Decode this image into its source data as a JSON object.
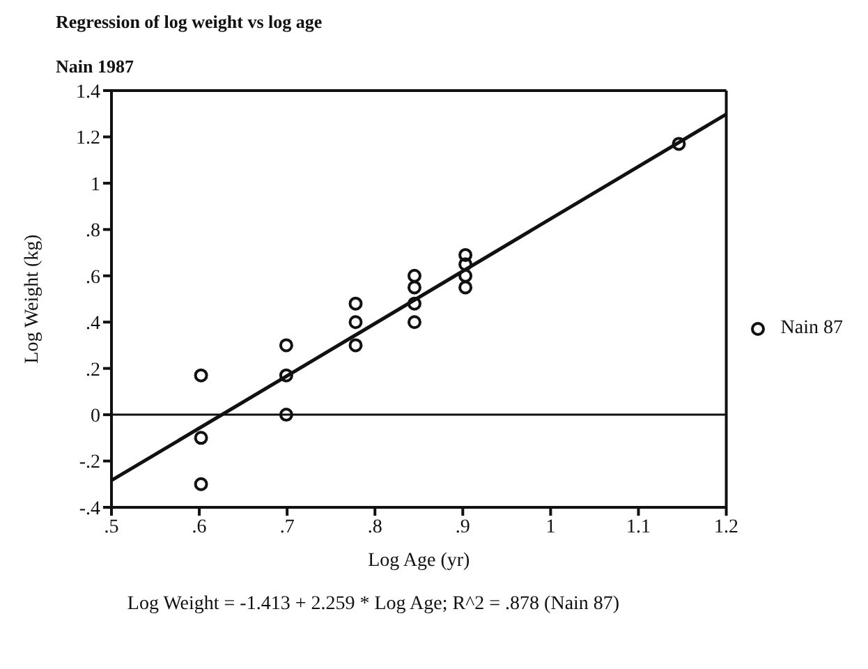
{
  "chart_data": {
    "type": "scatter",
    "title": "Regression of log weight vs log age",
    "subtitle": "Nain 1987",
    "xlabel": "Log Age (yr)",
    "ylabel": "Log Weight (kg)",
    "annotations": [
      "Log Weight = -1.413 + 2.259 * Log Age; R^2 = .878 (Nain 87)"
    ],
    "series": [
      {
        "name": "Nain 87",
        "color": "#111111",
        "marker": "circle",
        "x": [
          0.602,
          0.602,
          0.602,
          0.699,
          0.699,
          0.699,
          0.778,
          0.778,
          0.778,
          0.845,
          0.845,
          0.845,
          0.845,
          0.903,
          0.903,
          0.903,
          0.903,
          1.146
        ],
        "values": [
          0.17,
          -0.1,
          -0.3,
          0.3,
          0.17,
          0,
          0.48,
          0.4,
          0.3,
          0.6,
          0.55,
          0.48,
          0.4,
          0.69,
          0.65,
          0.6,
          0.55,
          1.17
        ]
      },
      {
        "type": "line",
        "color": "#111111",
        "marker": "none",
        "line_style": "solid",
        "x": [
          0.5,
          1.2
        ],
        "values": [
          -0.284,
          1.298
        ]
      }
    ],
    "xlim": [
      0.5,
      1.2
    ],
    "xticks": [
      {
        "value": 0.5,
        "label": ".5"
      },
      {
        "value": 0.6,
        "label": ".6"
      },
      {
        "value": 0.7,
        "label": ".7"
      },
      {
        "value": 0.8,
        "label": ".8"
      },
      {
        "value": 0.9,
        "label": ".9"
      },
      1,
      1.1,
      1.2
    ],
    "ylim": [
      -0.4,
      1.4
    ],
    "yticks": [
      {
        "value": -0.4,
        "label": "-.4"
      },
      {
        "value": -0.2,
        "label": "-.2"
      },
      0,
      {
        "value": 0.2,
        "label": ".2"
      },
      {
        "value": 0.4,
        "label": ".4"
      },
      {
        "value": 0.6,
        "label": ".6"
      },
      {
        "value": 0.8,
        "label": ".8"
      },
      1,
      1.2,
      1.4
    ],
    "ref_lines": [
      {
        "axis": "y",
        "value": 0,
        "color": "#111111"
      }
    ],
    "grid": false,
    "legend": "right"
  }
}
